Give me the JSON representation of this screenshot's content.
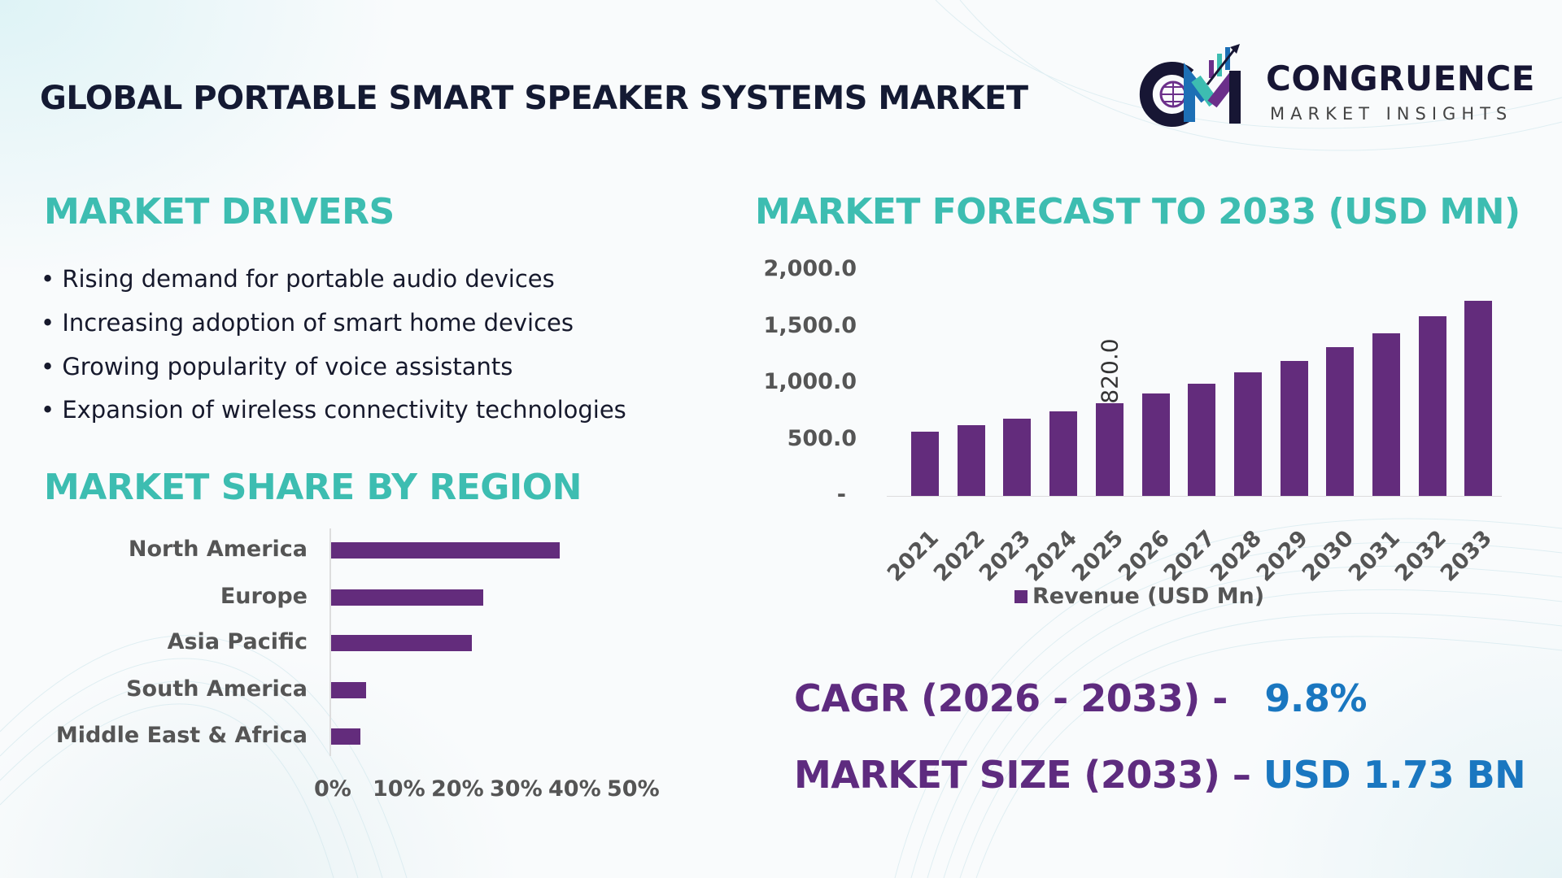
{
  "header": {
    "title": "GLOBAL PORTABLE SMART SPEAKER SYSTEMS MARKET",
    "logo": {
      "name": "CONGRUENCE",
      "tagline": "MARKET INSIGHTS",
      "initials": "CM"
    }
  },
  "drivers": {
    "heading": "MARKET DRIVERS",
    "items": [
      "• Rising demand for portable audio devices",
      "• Increasing adoption of smart home devices",
      "• Growing popularity of voice assistants",
      "• Expansion of wireless connectivity technologies"
    ]
  },
  "colors": {
    "heading": "#3dbdb1",
    "bar": "#632c7c",
    "kpi_label": "#5e2b7f",
    "kpi_value": "#1a77c0"
  },
  "chart_data": [
    {
      "type": "bar",
      "orientation": "horizontal",
      "title": "MARKET SHARE BY REGION",
      "categories": [
        "North America",
        "Europe",
        "Asia Pacific",
        "South America",
        "Middle East & Africa"
      ],
      "values": [
        39,
        26,
        24,
        6,
        5
      ],
      "unit": "%",
      "xlim": [
        0,
        50
      ],
      "xticks": [
        "0%",
        "10%",
        "20%",
        "30%",
        "40%",
        "50%"
      ],
      "grid": false
    },
    {
      "type": "bar",
      "title": "MARKET FORECAST TO 2033 (USD MN)",
      "categories": [
        "2021",
        "2022",
        "2023",
        "2024",
        "2025",
        "2026",
        "2027",
        "2028",
        "2029",
        "2030",
        "2031",
        "2032",
        "2033"
      ],
      "series": [
        {
          "name": "Revenue (USD Mn)",
          "values": [
            567,
            623,
            681,
            746,
            820,
            906,
            993,
            1094,
            1196,
            1319,
            1442,
            1589,
            1730
          ]
        }
      ],
      "data_labels": {
        "2025": "820.0"
      },
      "ylim": [
        0,
        2000
      ],
      "yticks": [
        "-",
        "500.0",
        "1,000.0",
        "1,500.0",
        "2,000.0"
      ],
      "legend": "bottom",
      "grid": false
    }
  ],
  "kpis": {
    "cagr_label": "CAGR (2026 - 2033) -",
    "cagr_value": "9.8%",
    "size_label": "MARKET SIZE (2033) –",
    "size_value": "USD 1.73 BN"
  }
}
